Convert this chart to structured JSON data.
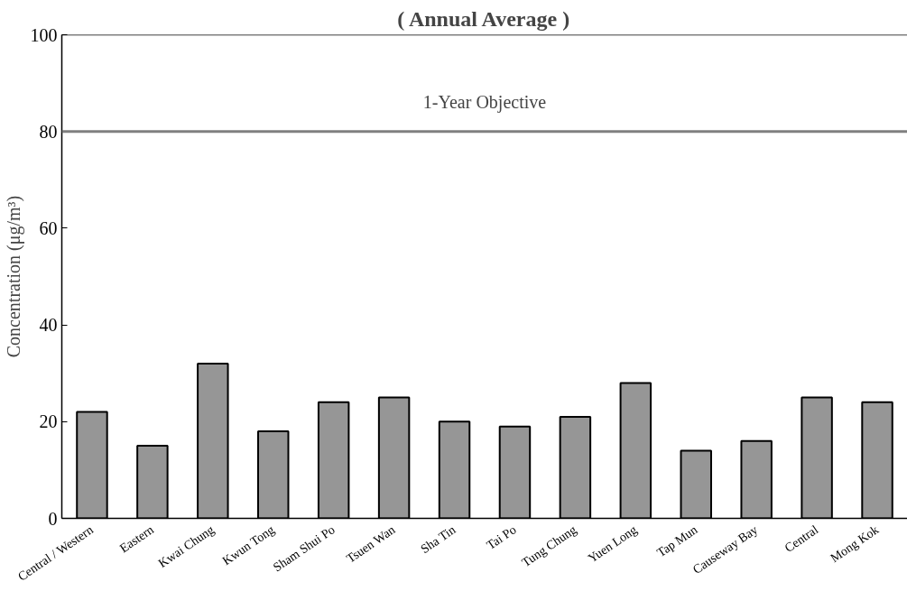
{
  "chart_data": {
    "type": "bar",
    "title": "( Annual Average )",
    "ylabel": "Concentration (μg/m³)",
    "categories": [
      "Central / Western",
      "Eastern",
      "Kwai Chung",
      "Kwun Tong",
      "Sham Shui Po",
      "Tsuen Wan",
      "Sha Tin",
      "Tai Po",
      "Tung Chung",
      "Yuen Long",
      "Tap Mun",
      "Causeway Bay",
      "Central",
      "Mong Kok"
    ],
    "values": [
      22,
      15,
      32,
      18,
      24,
      25,
      20,
      19,
      21,
      28,
      14,
      16,
      25,
      24
    ],
    "color": "#969696",
    "ylim": [
      0,
      100
    ],
    "yticks": [
      0,
      20,
      40,
      60,
      80,
      100
    ],
    "grid": false,
    "ref_lines": [
      {
        "axis": "y",
        "value": 80,
        "label": "1-Year Objective",
        "color": "#808080"
      }
    ]
  }
}
